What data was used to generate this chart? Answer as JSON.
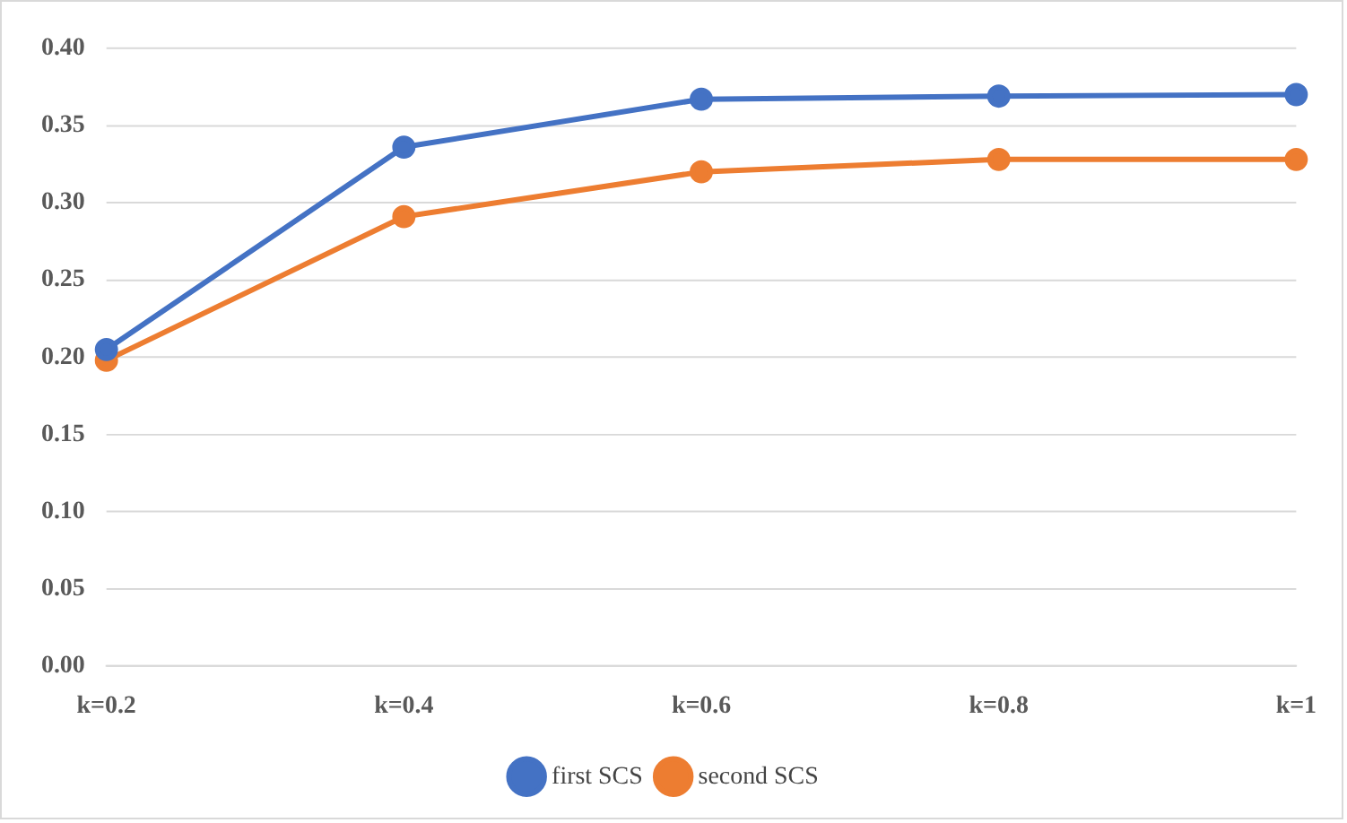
{
  "chart_data": {
    "type": "line",
    "categories": [
      "k=0.2",
      "k=0.4",
      "k=0.6",
      "k=0.8",
      "k=1"
    ],
    "series": [
      {
        "name": "first SCS",
        "color": "#4472c4",
        "values": [
          0.205,
          0.336,
          0.367,
          0.369,
          0.37
        ]
      },
      {
        "name": "second SCS",
        "color": "#ed7d31",
        "values": [
          0.198,
          0.291,
          0.32,
          0.328,
          0.328
        ]
      }
    ],
    "ylim": [
      0,
      0.4
    ],
    "yticks": [
      {
        "value": 0,
        "label": "0.00"
      },
      {
        "value": 0.05,
        "label": "0.05"
      },
      {
        "value": 0.1,
        "label": "0.10"
      },
      {
        "value": 0.15,
        "label": "0.15"
      },
      {
        "value": 0.2,
        "label": "0.20"
      },
      {
        "value": 0.25,
        "label": "0.25"
      },
      {
        "value": 0.3,
        "label": "0.30"
      },
      {
        "value": 0.35,
        "label": "0.35"
      },
      {
        "value": 0.4,
        "label": "0.40"
      }
    ],
    "grid": "y",
    "legend": "bottom",
    "marker": "circle",
    "line_style": "solid"
  }
}
